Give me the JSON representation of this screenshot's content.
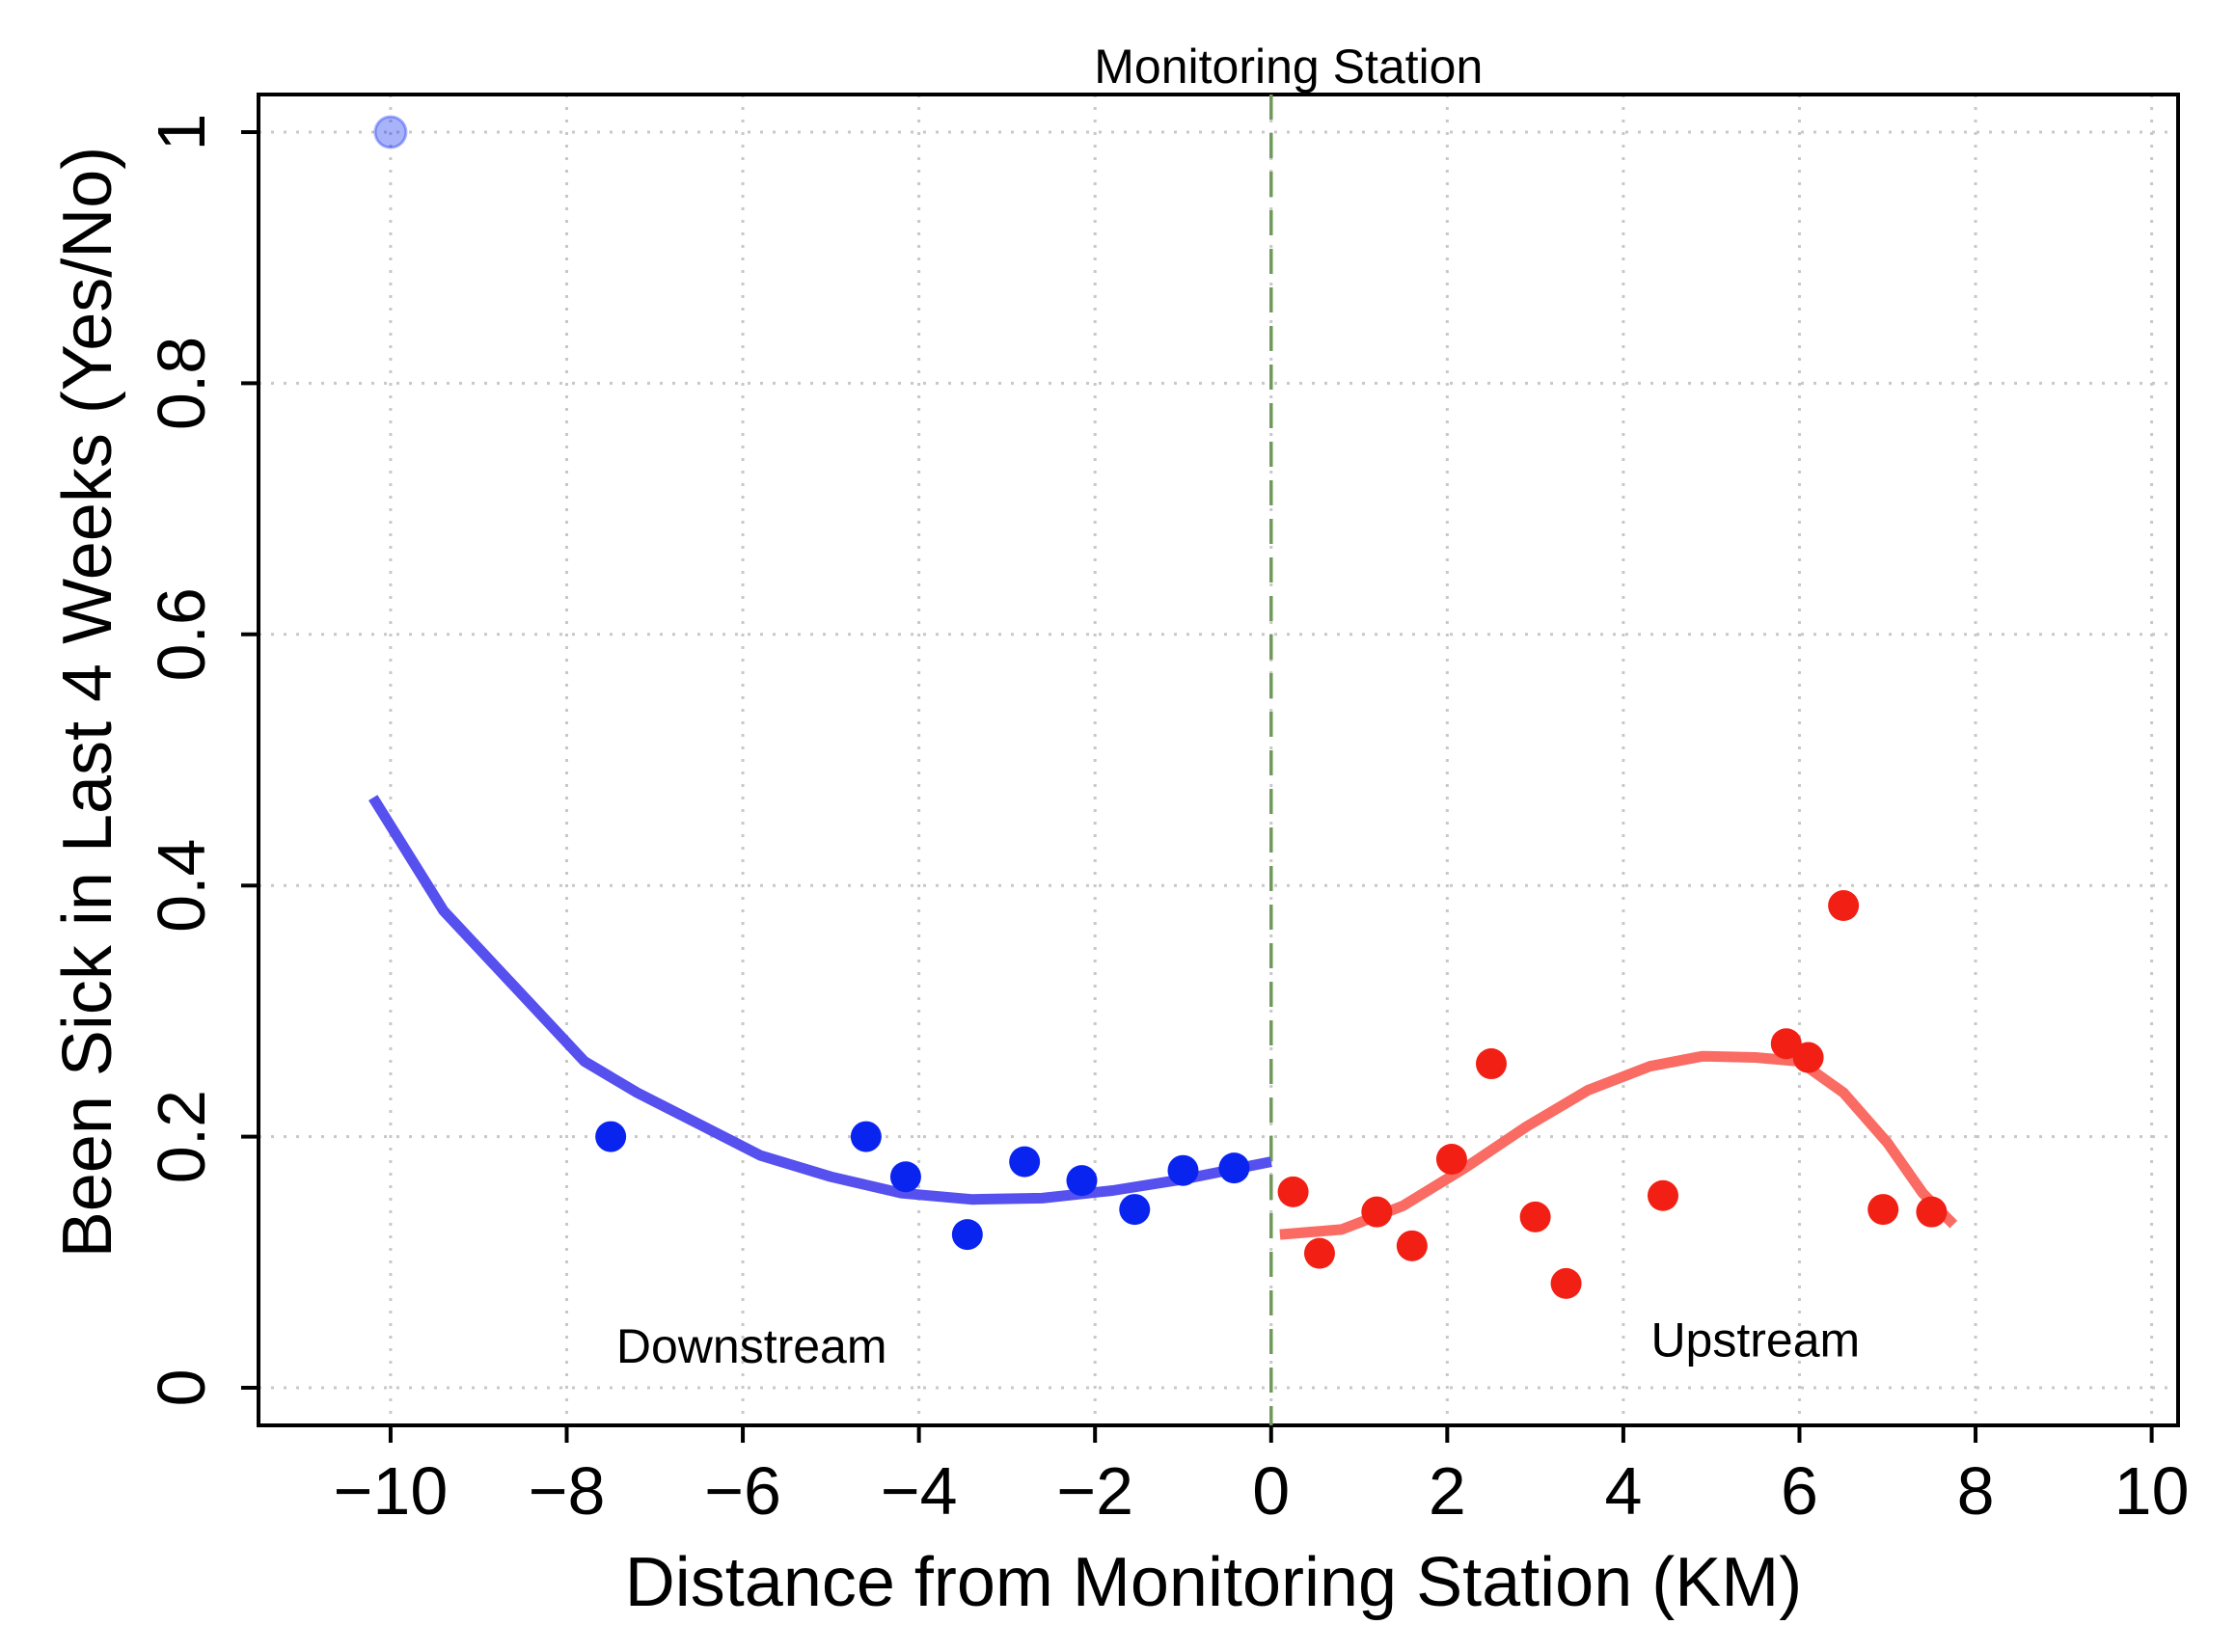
{
  "chart_data": {
    "type": "scatter",
    "title": "Monitoring Station",
    "xlabel": "Distance from Monitoring Station (KM)",
    "ylabel": "Been Sick in Last 4 Weeks (Yes/No)",
    "xlim": [
      -11.5,
      10.3
    ],
    "ylim": [
      -0.03,
      1.03
    ],
    "xticks": [
      -10,
      -8,
      -6,
      -4,
      -2,
      0,
      2,
      4,
      6,
      8,
      10
    ],
    "xtick_labels": [
      "−10",
      "−8",
      "−6",
      "−4",
      "−2",
      "0",
      "2",
      "4",
      "6",
      "8",
      "10"
    ],
    "yticks": [
      0,
      0.2,
      0.4,
      0.6,
      0.8,
      1
    ],
    "ytick_labels": [
      "0",
      "0.2",
      "0.4",
      "0.6",
      "0.8",
      "1"
    ],
    "grid": true,
    "cutoff": 0,
    "annotations": [
      {
        "text": "Downstream",
        "x": -5.9,
        "y": 0.02
      },
      {
        "text": "Upstream",
        "x": 5.5,
        "y": 0.025
      }
    ],
    "series": [
      {
        "name": "Downstream",
        "color": "#0a24f0",
        "points": [
          {
            "x": -10.0,
            "y": 1.0,
            "faded": true
          },
          {
            "x": -7.5,
            "y": 0.2
          },
          {
            "x": -4.6,
            "y": 0.2
          },
          {
            "x": -4.15,
            "y": 0.168
          },
          {
            "x": -3.45,
            "y": 0.122
          },
          {
            "x": -2.8,
            "y": 0.18
          },
          {
            "x": -2.15,
            "y": 0.165
          },
          {
            "x": -1.55,
            "y": 0.142
          },
          {
            "x": -1.0,
            "y": 0.173
          },
          {
            "x": -0.42,
            "y": 0.175
          }
        ],
        "fit_color": "#5550ee",
        "fit": [
          {
            "x": -10.2,
            "y": 0.47
          },
          {
            "x": -9.4,
            "y": 0.38
          },
          {
            "x": -8.6,
            "y": 0.32
          },
          {
            "x": -7.8,
            "y": 0.26
          },
          {
            "x": -7.2,
            "y": 0.235
          },
          {
            "x": -6.5,
            "y": 0.21
          },
          {
            "x": -5.8,
            "y": 0.185
          },
          {
            "x": -5.0,
            "y": 0.168
          },
          {
            "x": -4.2,
            "y": 0.155
          },
          {
            "x": -3.4,
            "y": 0.15
          },
          {
            "x": -2.6,
            "y": 0.151
          },
          {
            "x": -1.8,
            "y": 0.157
          },
          {
            "x": -1.0,
            "y": 0.166
          },
          {
            "x": 0.0,
            "y": 0.18
          }
        ]
      },
      {
        "name": "Upstream",
        "color": "#f21f14",
        "points": [
          {
            "x": 0.25,
            "y": 0.156
          },
          {
            "x": 0.55,
            "y": 0.107
          },
          {
            "x": 1.2,
            "y": 0.14
          },
          {
            "x": 1.6,
            "y": 0.113
          },
          {
            "x": 2.05,
            "y": 0.182
          },
          {
            "x": 2.5,
            "y": 0.258
          },
          {
            "x": 3.0,
            "y": 0.136
          },
          {
            "x": 3.35,
            "y": 0.083
          },
          {
            "x": 4.45,
            "y": 0.153
          },
          {
            "x": 5.85,
            "y": 0.274
          },
          {
            "x": 6.1,
            "y": 0.263
          },
          {
            "x": 6.5,
            "y": 0.384
          },
          {
            "x": 6.95,
            "y": 0.142
          },
          {
            "x": 7.5,
            "y": 0.14
          }
        ],
        "fit_color": "#f96b63",
        "fit": [
          {
            "x": 0.1,
            "y": 0.122
          },
          {
            "x": 0.8,
            "y": 0.126
          },
          {
            "x": 1.5,
            "y": 0.145
          },
          {
            "x": 2.2,
            "y": 0.175
          },
          {
            "x": 2.9,
            "y": 0.208
          },
          {
            "x": 3.6,
            "y": 0.237
          },
          {
            "x": 4.3,
            "y": 0.256
          },
          {
            "x": 4.9,
            "y": 0.264
          },
          {
            "x": 5.5,
            "y": 0.263
          },
          {
            "x": 6.0,
            "y": 0.26
          },
          {
            "x": 6.5,
            "y": 0.235
          },
          {
            "x": 7.0,
            "y": 0.195
          },
          {
            "x": 7.4,
            "y": 0.155
          },
          {
            "x": 7.75,
            "y": 0.13
          }
        ]
      }
    ]
  }
}
